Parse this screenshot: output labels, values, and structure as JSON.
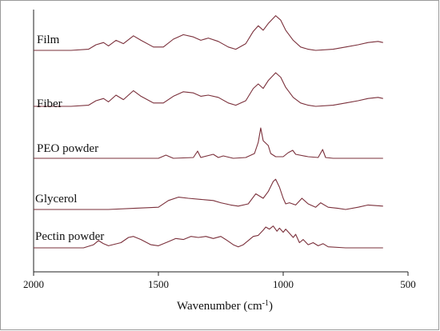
{
  "chart_data": {
    "type": "line",
    "title": "",
    "xlabel": "Wavenumber (cm",
    "xlabel_sup": "-1",
    "xlabel_close": ")",
    "ylabel": "",
    "xlim": [
      2000,
      500
    ],
    "x_reversed": true,
    "x_ticks": [
      2000,
      1500,
      1000,
      500
    ],
    "y_ticks_shown": false,
    "grid": false,
    "legend": "none",
    "line_color": "#7a2f3a",
    "offset_stacked": true,
    "series": [
      {
        "name": "Film",
        "baseline": 0.0,
        "points": [
          [
            2000,
            0.0
          ],
          [
            1850,
            0.0
          ],
          [
            1780,
            0.01
          ],
          [
            1750,
            0.05
          ],
          [
            1720,
            0.07
          ],
          [
            1700,
            0.04
          ],
          [
            1670,
            0.09
          ],
          [
            1640,
            0.06
          ],
          [
            1600,
            0.13
          ],
          [
            1570,
            0.09
          ],
          [
            1520,
            0.03
          ],
          [
            1480,
            0.03
          ],
          [
            1440,
            0.1
          ],
          [
            1400,
            0.14
          ],
          [
            1360,
            0.12
          ],
          [
            1330,
            0.09
          ],
          [
            1300,
            0.11
          ],
          [
            1260,
            0.08
          ],
          [
            1220,
            0.03
          ],
          [
            1190,
            0.01
          ],
          [
            1150,
            0.06
          ],
          [
            1120,
            0.17
          ],
          [
            1100,
            0.22
          ],
          [
            1080,
            0.18
          ],
          [
            1060,
            0.24
          ],
          [
            1030,
            0.31
          ],
          [
            1010,
            0.27
          ],
          [
            990,
            0.18
          ],
          [
            960,
            0.09
          ],
          [
            930,
            0.03
          ],
          [
            900,
            0.01
          ],
          [
            870,
            0.0
          ],
          [
            800,
            0.01
          ],
          [
            750,
            0.03
          ],
          [
            700,
            0.05
          ],
          [
            660,
            0.07
          ],
          [
            620,
            0.08
          ],
          [
            600,
            0.07
          ]
        ]
      },
      {
        "name": "Fiber",
        "baseline": 0.0,
        "points": [
          [
            2000,
            0.0
          ],
          [
            1850,
            0.0
          ],
          [
            1780,
            0.01
          ],
          [
            1750,
            0.05
          ],
          [
            1720,
            0.07
          ],
          [
            1700,
            0.04
          ],
          [
            1670,
            0.1
          ],
          [
            1640,
            0.06
          ],
          [
            1600,
            0.14
          ],
          [
            1570,
            0.09
          ],
          [
            1520,
            0.03
          ],
          [
            1480,
            0.03
          ],
          [
            1440,
            0.09
          ],
          [
            1400,
            0.13
          ],
          [
            1360,
            0.12
          ],
          [
            1330,
            0.09
          ],
          [
            1300,
            0.1
          ],
          [
            1260,
            0.08
          ],
          [
            1220,
            0.03
          ],
          [
            1190,
            0.01
          ],
          [
            1150,
            0.05
          ],
          [
            1120,
            0.16
          ],
          [
            1100,
            0.2
          ],
          [
            1080,
            0.16
          ],
          [
            1060,
            0.23
          ],
          [
            1030,
            0.3
          ],
          [
            1010,
            0.26
          ],
          [
            990,
            0.17
          ],
          [
            960,
            0.08
          ],
          [
            930,
            0.03
          ],
          [
            900,
            0.01
          ],
          [
            870,
            0.0
          ],
          [
            800,
            0.01
          ],
          [
            750,
            0.03
          ],
          [
            700,
            0.05
          ],
          [
            660,
            0.07
          ],
          [
            620,
            0.08
          ],
          [
            600,
            0.07
          ]
        ]
      },
      {
        "name": "PEO powder",
        "baseline": 0.0,
        "points": [
          [
            2000,
            0.0
          ],
          [
            1500,
            0.0
          ],
          [
            1470,
            0.04
          ],
          [
            1455,
            0.02
          ],
          [
            1440,
            0.0
          ],
          [
            1360,
            0.01
          ],
          [
            1343,
            0.09
          ],
          [
            1330,
            0.01
          ],
          [
            1280,
            0.05
          ],
          [
            1260,
            0.01
          ],
          [
            1240,
            0.03
          ],
          [
            1200,
            0.0
          ],
          [
            1150,
            0.01
          ],
          [
            1115,
            0.06
          ],
          [
            1100,
            0.2
          ],
          [
            1090,
            0.38
          ],
          [
            1080,
            0.22
          ],
          [
            1060,
            0.16
          ],
          [
            1050,
            0.06
          ],
          [
            1030,
            0.02
          ],
          [
            1000,
            0.02
          ],
          [
            980,
            0.07
          ],
          [
            962,
            0.1
          ],
          [
            950,
            0.05
          ],
          [
            900,
            0.02
          ],
          [
            860,
            0.01
          ],
          [
            842,
            0.11
          ],
          [
            830,
            0.01
          ],
          [
            800,
            0.0
          ],
          [
            600,
            0.0
          ]
        ]
      },
      {
        "name": "Glycerol",
        "baseline": 0.0,
        "points": [
          [
            2000,
            0.0
          ],
          [
            1800,
            0.0
          ],
          [
            1700,
            0.0
          ],
          [
            1600,
            0.01
          ],
          [
            1500,
            0.02
          ],
          [
            1460,
            0.08
          ],
          [
            1420,
            0.11
          ],
          [
            1380,
            0.1
          ],
          [
            1330,
            0.09
          ],
          [
            1280,
            0.08
          ],
          [
            1250,
            0.06
          ],
          [
            1210,
            0.04
          ],
          [
            1180,
            0.03
          ],
          [
            1140,
            0.05
          ],
          [
            1110,
            0.14
          ],
          [
            1080,
            0.1
          ],
          [
            1060,
            0.16
          ],
          [
            1040,
            0.25
          ],
          [
            1030,
            0.27
          ],
          [
            1015,
            0.2
          ],
          [
            1000,
            0.1
          ],
          [
            990,
            0.05
          ],
          [
            975,
            0.06
          ],
          [
            950,
            0.04
          ],
          [
            925,
            0.1
          ],
          [
            900,
            0.05
          ],
          [
            870,
            0.02
          ],
          [
            850,
            0.06
          ],
          [
            820,
            0.02
          ],
          [
            780,
            0.01
          ],
          [
            750,
            0.0
          ],
          [
            700,
            0.02
          ],
          [
            660,
            0.04
          ],
          [
            600,
            0.03
          ]
        ]
      },
      {
        "name": "Pectin powder",
        "baseline": 0.0,
        "points": [
          [
            2000,
            0.0
          ],
          [
            1800,
            0.0
          ],
          [
            1760,
            0.03
          ],
          [
            1740,
            0.07
          ],
          [
            1720,
            0.04
          ],
          [
            1700,
            0.02
          ],
          [
            1650,
            0.05
          ],
          [
            1620,
            0.1
          ],
          [
            1600,
            0.11
          ],
          [
            1570,
            0.08
          ],
          [
            1530,
            0.03
          ],
          [
            1500,
            0.02
          ],
          [
            1460,
            0.06
          ],
          [
            1430,
            0.09
          ],
          [
            1400,
            0.08
          ],
          [
            1370,
            0.11
          ],
          [
            1340,
            0.1
          ],
          [
            1310,
            0.11
          ],
          [
            1280,
            0.09
          ],
          [
            1250,
            0.11
          ],
          [
            1230,
            0.08
          ],
          [
            1200,
            0.03
          ],
          [
            1180,
            0.01
          ],
          [
            1160,
            0.03
          ],
          [
            1140,
            0.07
          ],
          [
            1120,
            0.11
          ],
          [
            1100,
            0.12
          ],
          [
            1080,
            0.17
          ],
          [
            1070,
            0.2
          ],
          [
            1055,
            0.18
          ],
          [
            1040,
            0.21
          ],
          [
            1025,
            0.16
          ],
          [
            1015,
            0.19
          ],
          [
            1000,
            0.15
          ],
          [
            990,
            0.18
          ],
          [
            975,
            0.14
          ],
          [
            960,
            0.1
          ],
          [
            950,
            0.13
          ],
          [
            935,
            0.05
          ],
          [
            920,
            0.08
          ],
          [
            900,
            0.03
          ],
          [
            880,
            0.05
          ],
          [
            860,
            0.02
          ],
          [
            840,
            0.04
          ],
          [
            820,
            0.01
          ],
          [
            750,
            0.0
          ],
          [
            600,
            0.0
          ]
        ]
      }
    ]
  }
}
